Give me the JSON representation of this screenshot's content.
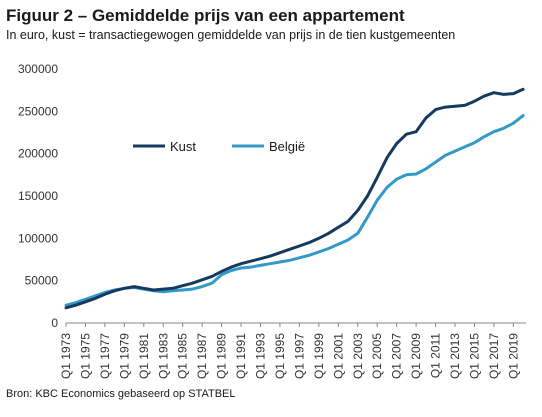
{
  "header": {
    "title": "Figuur 2 – Gemiddelde prijs van een appartement",
    "subtitle": "In euro, kust = transactiegewogen gemiddelde van prijs in de tien kustgemeenten"
  },
  "footer": {
    "source": "Bron: KBC Economics gebaseerd op STATBEL"
  },
  "colors": {
    "kust": "#163a5f",
    "belgie": "#3399c7"
  },
  "chart_data": {
    "type": "line",
    "ylim": [
      0,
      300000
    ],
    "yticks": [
      "0",
      "50000",
      "100000",
      "150000",
      "200000",
      "250000",
      "300000"
    ],
    "xticks": [
      "Q1 1973",
      "Q1 1975",
      "Q1 1977",
      "Q1 1979",
      "Q1 1981",
      "Q1 1983",
      "Q1 1985",
      "Q1 1987",
      "Q1 1989",
      "Q1 1991",
      "Q1 1993",
      "Q1 1995",
      "Q1 1997",
      "Q1 1999",
      "Q1 2001",
      "Q1 2003",
      "Q1 2005",
      "Q1 2007",
      "Q1 2009",
      "Q1 2011",
      "Q1 2013",
      "Q1 2015",
      "Q1 2017",
      "Q1 2019"
    ],
    "legend_position": "upper-left",
    "series": [
      {
        "name": "Kust",
        "x": [
          1973,
          1974,
          1975,
          1976,
          1977,
          1978,
          1979,
          1980,
          1981,
          1982,
          1983,
          1984,
          1985,
          1986,
          1987,
          1988,
          1989,
          1990,
          1991,
          1992,
          1993,
          1994,
          1995,
          1996,
          1997,
          1998,
          1999,
          2000,
          2001,
          2002,
          2003,
          2004,
          2005,
          2006,
          2007,
          2008,
          2009,
          2010,
          2011,
          2012,
          2013,
          2014,
          2015,
          2016,
          2017,
          2018,
          2019,
          2020
        ],
        "values": [
          18000,
          21000,
          25000,
          29000,
          34000,
          38000,
          41000,
          43000,
          41000,
          39000,
          40000,
          41000,
          44000,
          47000,
          51000,
          55000,
          61000,
          66000,
          70000,
          73000,
          76000,
          79000,
          83000,
          87000,
          91000,
          95000,
          100000,
          106000,
          113000,
          120000,
          133000,
          150000,
          172000,
          195000,
          212000,
          223000,
          226000,
          242000,
          252000,
          255000,
          256000,
          257000,
          262000,
          268000,
          272000,
          270000,
          271000,
          276000
        ]
      },
      {
        "name": "België",
        "x": [
          1973,
          1974,
          1975,
          1976,
          1977,
          1978,
          1979,
          1980,
          1981,
          1982,
          1983,
          1984,
          1985,
          1986,
          1987,
          1988,
          1989,
          1990,
          1991,
          1992,
          1993,
          1994,
          1995,
          1996,
          1997,
          1998,
          1999,
          2000,
          2001,
          2002,
          2003,
          2004,
          2005,
          2006,
          2007,
          2008,
          2009,
          2010,
          2011,
          2012,
          2013,
          2014,
          2015,
          2016,
          2017,
          2018,
          2019,
          2020
        ],
        "values": [
          21000,
          24000,
          28000,
          32000,
          36000,
          39000,
          41000,
          42000,
          40000,
          38000,
          37000,
          38000,
          39000,
          40000,
          43000,
          47000,
          57000,
          62000,
          65000,
          66000,
          68000,
          70000,
          72000,
          74000,
          77000,
          80000,
          84000,
          88000,
          93000,
          98000,
          106000,
          125000,
          145000,
          160000,
          170000,
          175000,
          176000,
          182000,
          190000,
          198000,
          203000,
          208000,
          213000,
          220000,
          226000,
          230000,
          236000,
          245000
        ]
      }
    ]
  }
}
